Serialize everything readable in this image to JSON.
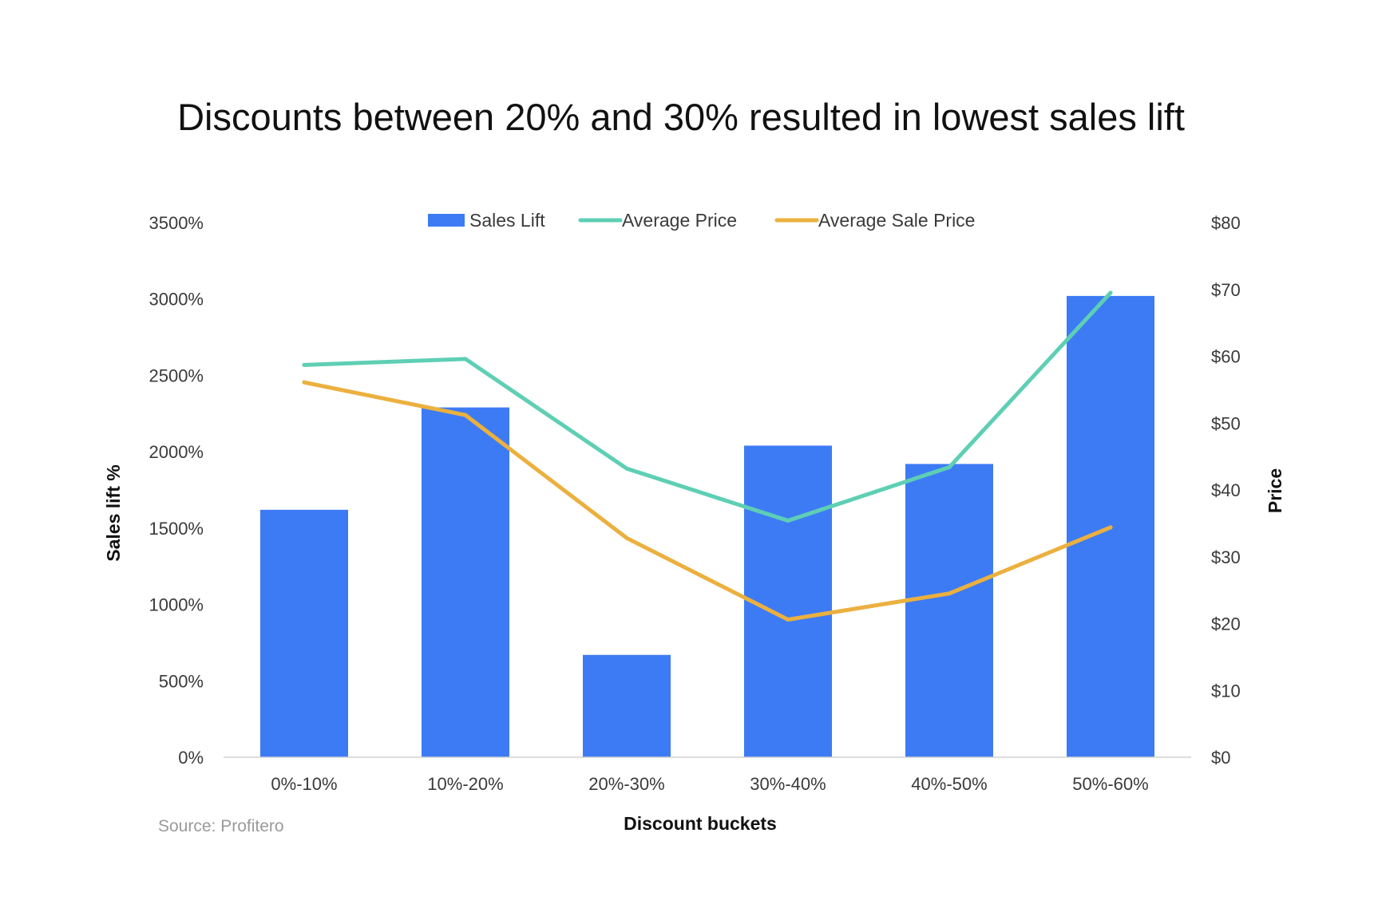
{
  "chart_data": {
    "type": "bar",
    "title": "Discounts between 20% and 30% resulted in lowest sales lift",
    "categories": [
      "0%-10%",
      "10%-20%",
      "20%-30%",
      "30%-40%",
      "40%-50%",
      "50%-60%"
    ],
    "xlabel": "Discount buckets",
    "ylabel": "Sales lift %",
    "y2label": "Price",
    "ylim": [
      0,
      3500
    ],
    "y2lim": [
      0,
      80
    ],
    "yticks": [
      "0%",
      "500%",
      "1000%",
      "1500%",
      "2000%",
      "2500%",
      "3000%",
      "3500%"
    ],
    "y2ticks": [
      "$0",
      "$10",
      "$20",
      "$30",
      "$40",
      "$50",
      "$60",
      "$70",
      "$80"
    ],
    "legend_position": "top",
    "grid": false,
    "series": [
      {
        "name": "Sales Lift",
        "type": "bar",
        "axis": "left",
        "color": "#3d7bf5",
        "values": [
          1620,
          2290,
          670,
          2040,
          1920,
          3020
        ]
      },
      {
        "name": "Average Price",
        "type": "line",
        "axis": "right",
        "color": "#5ecfb4",
        "values": [
          58.7,
          59.6,
          43.2,
          35.4,
          43.4,
          69.5
        ]
      },
      {
        "name": "Average Sale Price",
        "type": "line",
        "axis": "right",
        "color": "#ebb03e",
        "values": [
          56.1,
          51.2,
          32.8,
          20.6,
          24.5,
          34.4
        ]
      }
    ],
    "source": "Source: Profitero"
  }
}
